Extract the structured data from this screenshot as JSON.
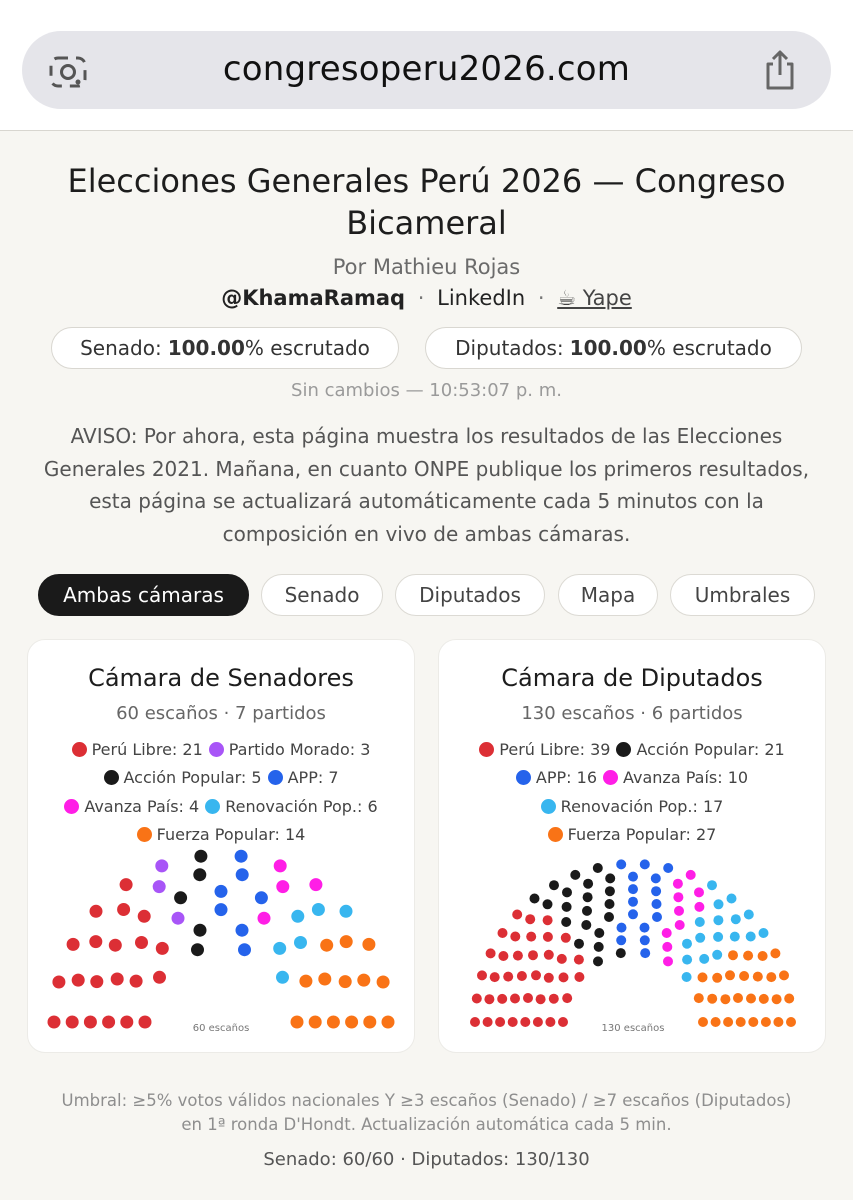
{
  "browser": {
    "url": "congresoperu2026.com",
    "lens_icon": "camera-lens-icon",
    "share_icon": "share-icon"
  },
  "header": {
    "title_line1": "Elecciones Generales Perú 2026 — Congreso",
    "title_line2": "Bicameral",
    "byline": "Por Mathieu Rojas",
    "handle": "@KhamaRamaq",
    "linkedin": "LinkedIn",
    "yape": "☕ Yape",
    "separator": "·"
  },
  "progress": {
    "senado_label": "Senado:",
    "senado_value": "100.00",
    "senado_suffix": "% escrutado",
    "diputados_label": "Diputados:",
    "diputados_value": "100.00",
    "diputados_suffix": "% escrutado"
  },
  "status": "Sin cambios — 10:53:07 p. m.",
  "notice_lines": [
    "AVISO: Por ahora, esta página muestra los resultados de las Elecciones",
    "Generales 2021. Mañana, en cuanto ONPE publique los primeros resultados,",
    "esta página se actualizará automáticamente cada 5 minutos con la",
    "composición en vivo de ambas cámaras."
  ],
  "tabs": [
    "Ambas cámaras",
    "Senado",
    "Diputados",
    "Mapa",
    "Umbrales"
  ],
  "colors": {
    "peru_libre": "#dc2f35",
    "partido_morado": "#a855f7",
    "accion_popular": "#1a1a1a",
    "app": "#2563eb",
    "avanza_pais": "#ff1ee6",
    "renovacion": "#38b6ef",
    "fuerza_popular": "#f97316"
  },
  "senado": {
    "title": "Cámara de Senadores",
    "subtitle": "60 escaños · 7 partidos",
    "caption": "60 escaños",
    "parties": [
      {
        "name": "Perú Libre",
        "seats": 21,
        "color": "#dc2f35",
        "label": "Perú Libre: 21"
      },
      {
        "name": "Partido Morado",
        "seats": 3,
        "color": "#a855f7",
        "label": "Partido Morado: 3"
      },
      {
        "name": "Acción Popular",
        "seats": 5,
        "color": "#1a1a1a",
        "label": "Acción Popular: 5"
      },
      {
        "name": "APP",
        "seats": 7,
        "color": "#2563eb",
        "label": "APP: 7"
      },
      {
        "name": "Avanza País",
        "seats": 4,
        "color": "#ff1ee6",
        "label": "Avanza País: 4"
      },
      {
        "name": "Renovación Pop.",
        "seats": 6,
        "color": "#38b6ef",
        "label": "Renovación Pop.: 6"
      },
      {
        "name": "Fuerza Popular",
        "seats": 14,
        "color": "#f97316",
        "label": "Fuerza Popular: 14"
      }
    ]
  },
  "diputados": {
    "title": "Cámara de Diputados",
    "subtitle": "130 escaños · 6 partidos",
    "caption": "130 escaños",
    "parties": [
      {
        "name": "Perú Libre",
        "seats": 39,
        "color": "#dc2f35",
        "label": "Perú Libre: 39"
      },
      {
        "name": "Acción Popular",
        "seats": 21,
        "color": "#1a1a1a",
        "label": "Acción Popular: 21"
      },
      {
        "name": "APP",
        "seats": 16,
        "color": "#2563eb",
        "label": "APP: 16"
      },
      {
        "name": "Avanza País",
        "seats": 10,
        "color": "#ff1ee6",
        "label": "Avanza País: 10"
      },
      {
        "name": "Renovación Pop.",
        "seats": 17,
        "color": "#38b6ef",
        "label": "Renovación Pop.: 17"
      },
      {
        "name": "Fuerza Popular",
        "seats": 27,
        "color": "#f97316",
        "label": "Fuerza Popular: 27"
      }
    ]
  },
  "footer": {
    "line1": "Umbral: ≥5% votos válidos nacionales Y ≥3 escaños (Senado) / ≥7 escaños (Diputados)",
    "line2": "en 1ª ronda D'Hondt. Actualización automática cada 5 min.",
    "totals": "Senado: 60/60 · Diputados: 130/130"
  }
}
